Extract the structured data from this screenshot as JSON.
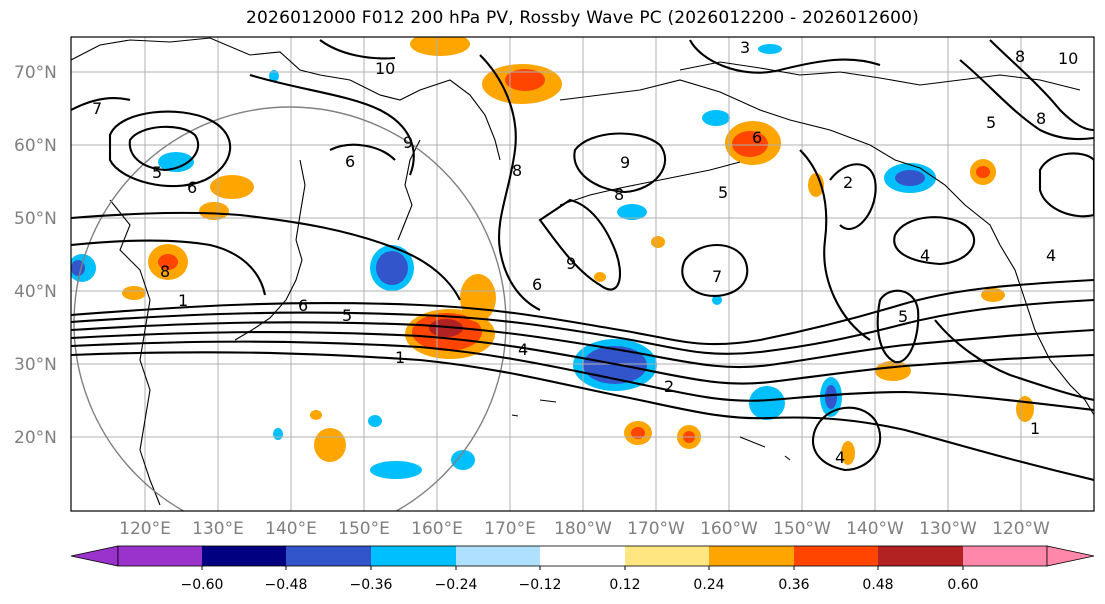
{
  "title": "2026012000 F012 200 hPa PV, Rossby Wave PC (2026012200 - 2026012600)",
  "lat_labels": [
    "70°N",
    "60°N",
    "50°N",
    "40°N",
    "30°N",
    "20°N"
  ],
  "lat_values": [
    70,
    60,
    50,
    40,
    30,
    20
  ],
  "lon_labels": [
    "120°E",
    "130°E",
    "140°E",
    "150°E",
    "160°E",
    "170°E",
    "180°W",
    "170°W",
    "160°W",
    "150°W",
    "140°W",
    "130°W",
    "120°W"
  ],
  "colorbar": {
    "tick_labels": [
      "−0.60",
      "−0.48",
      "−0.36",
      "−0.24",
      "−0.12",
      "0.12",
      "0.24",
      "0.36",
      "0.48",
      "0.60"
    ],
    "colors": {
      "under": "#9933cc",
      "bins": [
        "#9933cc",
        "#000080",
        "#3355cc",
        "#00bfff",
        "#b0e0ff",
        "#ffffff",
        "#ffe680",
        "#ffa500",
        "#ff4500",
        "#b22222",
        "#ff88aa"
      ],
      "over": "#ff88aa"
    }
  },
  "contour_labels": [
    "10",
    "3",
    "8",
    "10",
    "7",
    "5",
    "6",
    "6",
    "9",
    "8",
    "9",
    "8",
    "6",
    "5",
    "2",
    "4",
    "4",
    "8",
    "9",
    "6",
    "7",
    "5",
    "4",
    "1",
    "5",
    "6",
    "1",
    "2",
    "5",
    "1",
    "4",
    "8"
  ]
}
